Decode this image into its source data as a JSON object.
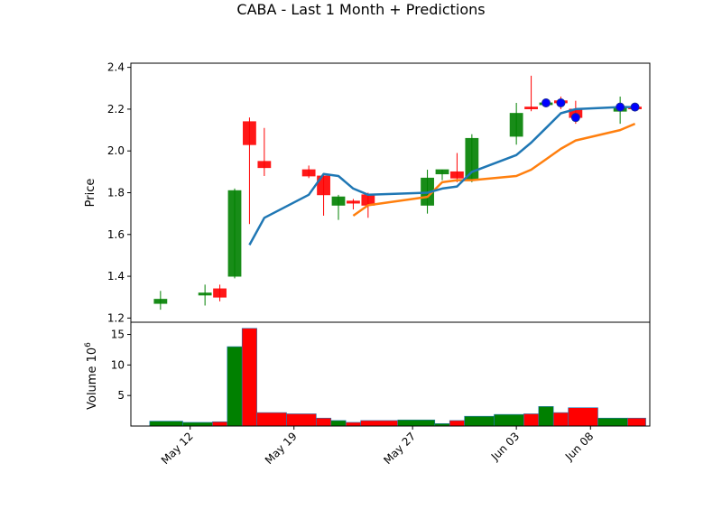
{
  "chart_data": {
    "type": "candlestick",
    "title": "CABA - Last 1 Month + Predictions",
    "price_panel": {
      "ylabel": "Price",
      "ylim": [
        1.18,
        2.42
      ],
      "yticks": [
        "1.2",
        "1.4",
        "1.6",
        "1.8",
        "2.0",
        "2.2",
        "2.4"
      ],
      "candles": [
        {
          "date": "2024-05-10",
          "open": 1.27,
          "high": 1.33,
          "low": 1.24,
          "close": 1.29,
          "color": "green"
        },
        {
          "date": "2024-05-13",
          "open": 1.31,
          "high": 1.36,
          "low": 1.26,
          "close": 1.32,
          "color": "green"
        },
        {
          "date": "2024-05-14",
          "open": 1.34,
          "high": 1.36,
          "low": 1.28,
          "close": 1.3,
          "color": "red"
        },
        {
          "date": "2024-05-15",
          "open": 1.4,
          "high": 1.82,
          "low": 1.39,
          "close": 1.81,
          "color": "green"
        },
        {
          "date": "2024-05-16",
          "open": 2.14,
          "high": 2.16,
          "low": 1.65,
          "close": 2.03,
          "color": "red"
        },
        {
          "date": "2024-05-17",
          "open": 1.95,
          "high": 2.11,
          "low": 1.88,
          "close": 1.92,
          "color": "red"
        },
        {
          "date": "2024-05-20",
          "open": 1.91,
          "high": 1.93,
          "low": 1.87,
          "close": 1.88,
          "color": "red"
        },
        {
          "date": "2024-05-21",
          "open": 1.88,
          "high": 1.89,
          "low": 1.69,
          "close": 1.79,
          "color": "red"
        },
        {
          "date": "2024-05-22",
          "open": 1.74,
          "high": 1.79,
          "low": 1.67,
          "close": 1.78,
          "color": "green"
        },
        {
          "date": "2024-05-23",
          "open": 1.76,
          "high": 1.77,
          "low": 1.72,
          "close": 1.75,
          "color": "red"
        },
        {
          "date": "2024-05-24",
          "open": 1.79,
          "high": 1.8,
          "low": 1.68,
          "close": 1.74,
          "color": "red"
        },
        {
          "date": "2024-05-28",
          "open": 1.74,
          "high": 1.91,
          "low": 1.7,
          "close": 1.87,
          "color": "green"
        },
        {
          "date": "2024-05-29",
          "open": 1.89,
          "high": 1.91,
          "low": 1.86,
          "close": 1.91,
          "color": "green"
        },
        {
          "date": "2024-05-30",
          "open": 1.9,
          "high": 1.99,
          "low": 1.85,
          "close": 1.87,
          "color": "red"
        },
        {
          "date": "2024-05-31",
          "open": 1.86,
          "high": 2.08,
          "low": 1.85,
          "close": 2.06,
          "color": "green"
        },
        {
          "date": "2024-06-03",
          "open": 2.07,
          "high": 2.23,
          "low": 2.03,
          "close": 2.18,
          "color": "green"
        },
        {
          "date": "2024-06-04",
          "open": 2.21,
          "high": 2.36,
          "low": 2.19,
          "close": 2.21,
          "color": "red"
        },
        {
          "date": "2024-06-05",
          "open": 2.23,
          "high": 2.24,
          "low": 2.22,
          "close": 2.23,
          "color": "green"
        },
        {
          "date": "2024-06-06",
          "open": 2.24,
          "high": 2.26,
          "low": 2.2,
          "close": 2.23,
          "color": "red"
        },
        {
          "date": "2024-06-07",
          "open": 2.2,
          "high": 2.24,
          "low": 2.13,
          "close": 2.16,
          "color": "red"
        },
        {
          "date": "2024-06-10",
          "open": 2.19,
          "high": 2.26,
          "low": 2.13,
          "close": 2.21,
          "color": "green"
        },
        {
          "date": "2024-06-11",
          "open": 2.21,
          "high": 2.22,
          "low": 2.2,
          "close": 2.21,
          "color": "red"
        }
      ],
      "ma_short": {
        "color": "#1f77b4",
        "values": [
          null,
          null,
          null,
          null,
          1.55,
          1.68,
          1.79,
          1.89,
          1.88,
          1.82,
          1.79,
          1.8,
          1.82,
          1.83,
          1.9,
          1.98,
          2.04,
          2.11,
          2.18,
          2.2,
          2.21,
          2.21
        ]
      },
      "ma_long": {
        "color": "#ff7f0e",
        "values": [
          null,
          null,
          null,
          null,
          null,
          null,
          null,
          null,
          null,
          1.69,
          1.74,
          1.78,
          1.85,
          1.86,
          1.86,
          1.88,
          1.91,
          1.96,
          2.01,
          2.05,
          2.1,
          2.13
        ]
      },
      "predictions": {
        "color": "#0000ff",
        "points": [
          {
            "date": "2024-06-05",
            "value": 2.23
          },
          {
            "date": "2024-06-06",
            "value": 2.23
          },
          {
            "date": "2024-06-07",
            "value": 2.16
          },
          {
            "date": "2024-06-10",
            "value": 2.21
          },
          {
            "date": "2024-06-11",
            "value": 2.21
          }
        ]
      }
    },
    "volume_panel": {
      "ylabel": "Volume",
      "scale_label": "10",
      "scale_exponent": "6",
      "ylim": [
        0,
        17
      ],
      "yticks": [
        "5",
        "10",
        "15"
      ],
      "bars": [
        {
          "value": 0.8,
          "color": "green"
        },
        {
          "value": 0.6,
          "color": "green"
        },
        {
          "value": 0.7,
          "color": "red"
        },
        {
          "value": 13.0,
          "color": "green"
        },
        {
          "value": 16.0,
          "color": "red"
        },
        {
          "value": 2.2,
          "color": "red"
        },
        {
          "value": 2.0,
          "color": "red"
        },
        {
          "value": 1.3,
          "color": "red"
        },
        {
          "value": 0.9,
          "color": "green"
        },
        {
          "value": 0.6,
          "color": "red"
        },
        {
          "value": 0.9,
          "color": "red"
        },
        {
          "value": 1.0,
          "color": "green"
        },
        {
          "value": 0.4,
          "color": "green"
        },
        {
          "value": 0.9,
          "color": "red"
        },
        {
          "value": 1.6,
          "color": "green"
        },
        {
          "value": 1.9,
          "color": "green"
        },
        {
          "value": 2.0,
          "color": "red"
        },
        {
          "value": 3.2,
          "color": "green"
        },
        {
          "value": 2.2,
          "color": "red"
        },
        {
          "value": 3.0,
          "color": "red"
        },
        {
          "value": 1.3,
          "color": "green"
        },
        {
          "value": 1.3,
          "color": "red"
        }
      ]
    },
    "x_axis": {
      "xlim": [
        "2024-05-08",
        "2024-06-12"
      ],
      "ticks": [
        {
          "label": "May 12",
          "date": "2024-05-12"
        },
        {
          "label": "May 19",
          "date": "2024-05-19"
        },
        {
          "label": "May 27",
          "date": "2024-05-27"
        },
        {
          "label": "Jun 03",
          "date": "2024-06-03"
        },
        {
          "label": "Jun 08",
          "date": "2024-06-08"
        }
      ]
    },
    "colors": {
      "up": "#008000",
      "down": "#ff0000",
      "frame": "#000000"
    }
  }
}
